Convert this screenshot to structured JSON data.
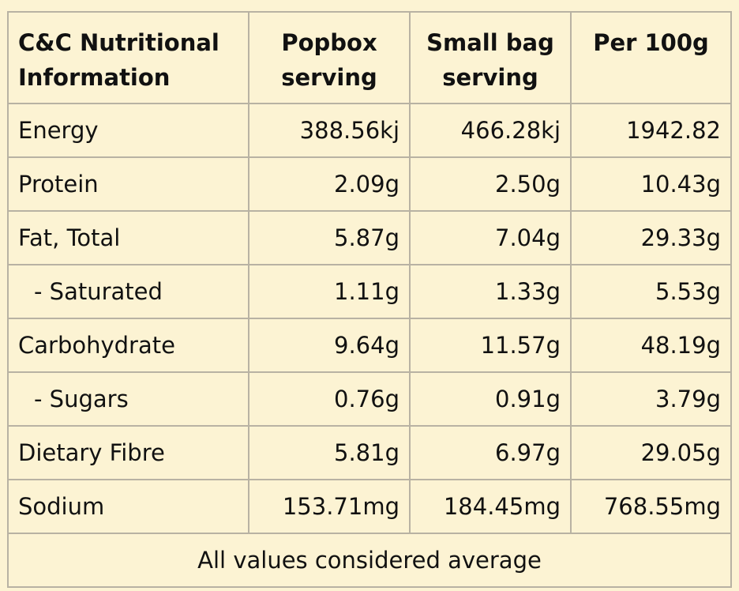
{
  "table": {
    "headers": [
      "C&C Nutritional Information",
      "Popbox serving",
      "Small bag serving",
      "Per 100g"
    ],
    "rows": [
      {
        "label": "Energy",
        "popbox": "388.56kj",
        "small_bag": "466.28kj",
        "per_100g": "1942.82"
      },
      {
        "label": "Protein",
        "popbox": "2.09g",
        "small_bag": "2.50g",
        "per_100g": "10.43g"
      },
      {
        "label": "Fat, Total",
        "popbox": "5.87g",
        "small_bag": "7.04g",
        "per_100g": "29.33g"
      },
      {
        "label": "- Saturated",
        "popbox": "1.11g",
        "small_bag": "1.33g",
        "per_100g": "5.53g"
      },
      {
        "label": "Carbohydrate",
        "popbox": "9.64g",
        "small_bag": "11.57g",
        "per_100g": "48.19g"
      },
      {
        "label": "- Sugars",
        "popbox": "0.76g",
        "small_bag": "0.91g",
        "per_100g": "3.79g"
      },
      {
        "label": "Dietary Fibre",
        "popbox": "5.81g",
        "small_bag": "6.97g",
        "per_100g": "29.05g"
      },
      {
        "label": "Sodium",
        "popbox": "153.71mg",
        "small_bag": "184.45mg",
        "per_100g": "768.55mg"
      }
    ],
    "footer": "All values considered average"
  },
  "colors": {
    "background": "#fcf3d3",
    "border": "#b8b2a3",
    "text": "#111111"
  }
}
